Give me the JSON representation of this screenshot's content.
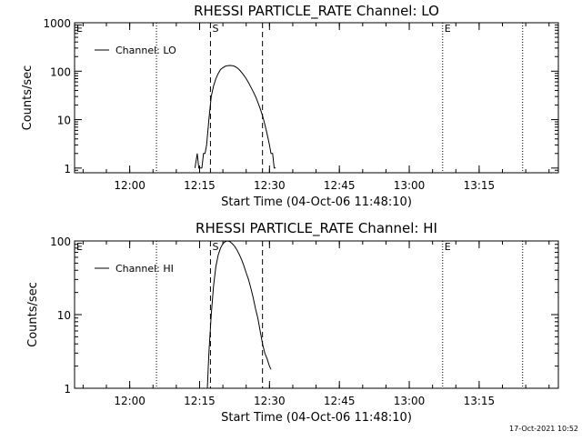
{
  "colors": {
    "background": "#ffffff",
    "foreground": "#000000"
  },
  "footer": {
    "timestamp": "17-Oct-2021 10:52"
  },
  "chart_data": [
    {
      "type": "line",
      "title": "RHESSI PARTICLE_RATE Channel: LO",
      "xlabel": "Start Time (04-Oct-06 11:48:10)",
      "ylabel": "Counts/sec",
      "yscale": "log",
      "xlim": [
        "11:48:10",
        "13:32:00"
      ],
      "ylim": [
        0.8,
        1000
      ],
      "xticks": [
        "12:00",
        "12:15",
        "12:30",
        "12:45",
        "13:00",
        "13:15"
      ],
      "yticks": [
        "1",
        "10",
        "100",
        "1000"
      ],
      "legend": {
        "position": "top-left",
        "entries": [
          "Channel: LO"
        ]
      },
      "series": [
        {
          "name": "Channel: LO",
          "x": [
            "12:14:00",
            "12:14:30",
            "12:14:50",
            "12:15:10",
            "12:15:30",
            "12:15:50",
            "12:16:10",
            "12:16:30",
            "12:17:00",
            "12:17:30",
            "12:18:00",
            "12:18:30",
            "12:19:00",
            "12:19:30",
            "12:20:00",
            "12:20:30",
            "12:21:00",
            "12:21:30",
            "12:22:00",
            "12:22:30",
            "12:23:00",
            "12:23:30",
            "12:24:00",
            "12:24:30",
            "12:25:00",
            "12:25:30",
            "12:26:00",
            "12:26:30",
            "12:27:00",
            "12:27:30",
            "12:28:00",
            "12:28:30",
            "12:29:00",
            "12:29:30",
            "12:30:00",
            "12:30:20",
            "12:30:40",
            "12:31:00",
            "12:31:20"
          ],
          "values": [
            1,
            2,
            1,
            1,
            1,
            2,
            2,
            3,
            10,
            30,
            50,
            70,
            90,
            108,
            118,
            126,
            130,
            131,
            130,
            126,
            118,
            108,
            95,
            82,
            70,
            58,
            47,
            38,
            30,
            23,
            17,
            12,
            8,
            5,
            3,
            2,
            2,
            1,
            1
          ]
        }
      ],
      "annotations": {
        "dotted_lines": [
          "12:05:45",
          "13:07:10",
          "13:24:20"
        ],
        "dashed_lines": [
          "12:17:20",
          "12:28:30"
        ],
        "labels": [
          {
            "text": "E",
            "x": "11:48:10"
          },
          {
            "text": "S",
            "x": "12:17:20"
          },
          {
            "text": "E",
            "x": "13:07:10"
          }
        ]
      }
    },
    {
      "type": "line",
      "title": "RHESSI PARTICLE_RATE Channel: HI",
      "xlabel": "Start Time (04-Oct-06 11:48:10)",
      "ylabel": "Counts/sec",
      "yscale": "log",
      "xlim": [
        "11:48:10",
        "13:32:00"
      ],
      "ylim": [
        1,
        100
      ],
      "xticks": [
        "12:00",
        "12:15",
        "12:30",
        "12:45",
        "13:00",
        "13:15"
      ],
      "yticks": [
        "1",
        "10",
        "100"
      ],
      "legend": {
        "position": "top-left",
        "entries": [
          "Channel: HI"
        ]
      },
      "series": [
        {
          "name": "Channel: HI",
          "x": [
            "12:16:40",
            "12:17:00",
            "12:17:30",
            "12:18:00",
            "12:18:30",
            "12:19:00",
            "12:19:30",
            "12:20:00",
            "12:20:30",
            "12:21:00",
            "12:21:30",
            "12:22:00",
            "12:22:30",
            "12:23:00",
            "12:23:30",
            "12:24:00",
            "12:24:30",
            "12:25:00",
            "12:25:30",
            "12:26:00",
            "12:26:30",
            "12:27:00",
            "12:27:30",
            "12:28:00",
            "12:28:30",
            "12:29:00",
            "12:29:30",
            "12:30:00",
            "12:30:20"
          ],
          "values": [
            1,
            3,
            10,
            25,
            45,
            65,
            80,
            92,
            98,
            100,
            98,
            92,
            85,
            76,
            66,
            56,
            46,
            37,
            30,
            23,
            17,
            12,
            9,
            6,
            4,
            3,
            2.5,
            2,
            1.8
          ]
        }
      ],
      "annotations": {
        "dotted_lines": [
          "12:05:45",
          "13:07:10",
          "13:24:20"
        ],
        "dashed_lines": [
          "12:17:20",
          "12:28:30"
        ],
        "labels": [
          {
            "text": "E",
            "x": "11:48:10"
          },
          {
            "text": "S",
            "x": "12:17:20"
          },
          {
            "text": "E",
            "x": "13:07:10"
          }
        ]
      }
    }
  ]
}
